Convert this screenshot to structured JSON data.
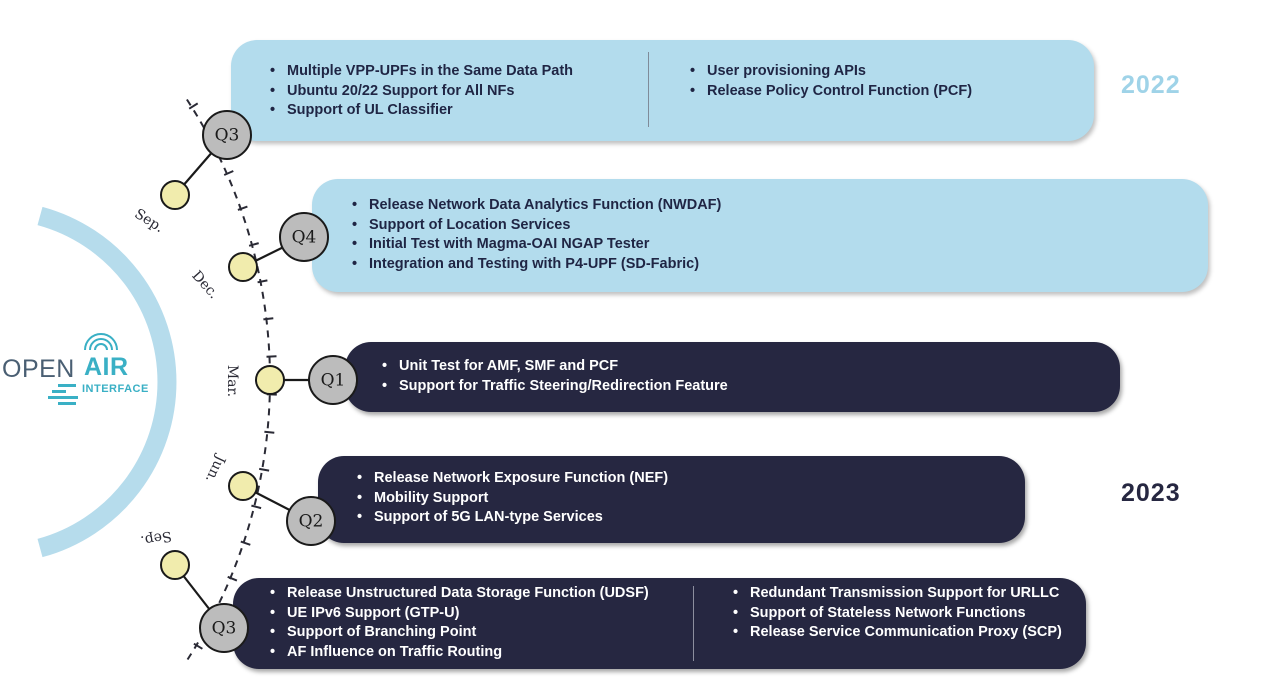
{
  "logo": {
    "word_open": "OPEN",
    "word_air": "AIR",
    "word_interface": "INTERFACE",
    "color_primary": "#4a5f73",
    "color_accent": "#3ab0c5"
  },
  "years": [
    {
      "label": "2022",
      "color": "#9fd3e8"
    },
    {
      "label": "2023",
      "color": "#262741"
    }
  ],
  "months": [
    "Sep.",
    "Dec.",
    "Mar.",
    "Jun.",
    "Sep."
  ],
  "quarters": [
    "Q3",
    "Q4",
    "Q1",
    "Q2",
    "Q3"
  ],
  "cards": [
    {
      "theme": "light",
      "columns": [
        [
          "Multiple VPP-UPFs in the Same Data Path",
          "Ubuntu 20/22 Support for All NFs",
          "Support of UL Classifier"
        ],
        [
          "User provisioning APIs",
          "Release Policy Control Function (PCF)"
        ]
      ]
    },
    {
      "theme": "light",
      "columns": [
        [
          "Release Network Data Analytics Function (NWDAF)",
          "Support of Location Services",
          "Initial Test with Magma-OAI NGAP Tester",
          "Integration and Testing with P4-UPF (SD-Fabric)"
        ]
      ]
    },
    {
      "theme": "dark",
      "columns": [
        [
          "Unit Test for AMF, SMF and PCF",
          "Support for Traffic Steering/Redirection Feature"
        ]
      ]
    },
    {
      "theme": "dark",
      "columns": [
        [
          "Release Network Exposure Function (NEF)",
          "Mobility Support",
          "Support of 5G LAN-type Services"
        ]
      ]
    },
    {
      "theme": "dark",
      "columns": [
        [
          "Release Unstructured Data Storage Function (UDSF)",
          "UE IPv6 Support (GTP-U)",
          "Support of Branching Point",
          "AF Influence on Traffic Routing"
        ],
        [
          "Redundant Transmission Support for URLLC",
          "Support of Stateless Network Functions",
          "Release Service Communication Proxy (SCP)"
        ]
      ]
    }
  ],
  "colors": {
    "timeline_dot": "#f1ecad",
    "quarter_node": "#bcbcbc",
    "arc_glow": "#b6dcec"
  }
}
